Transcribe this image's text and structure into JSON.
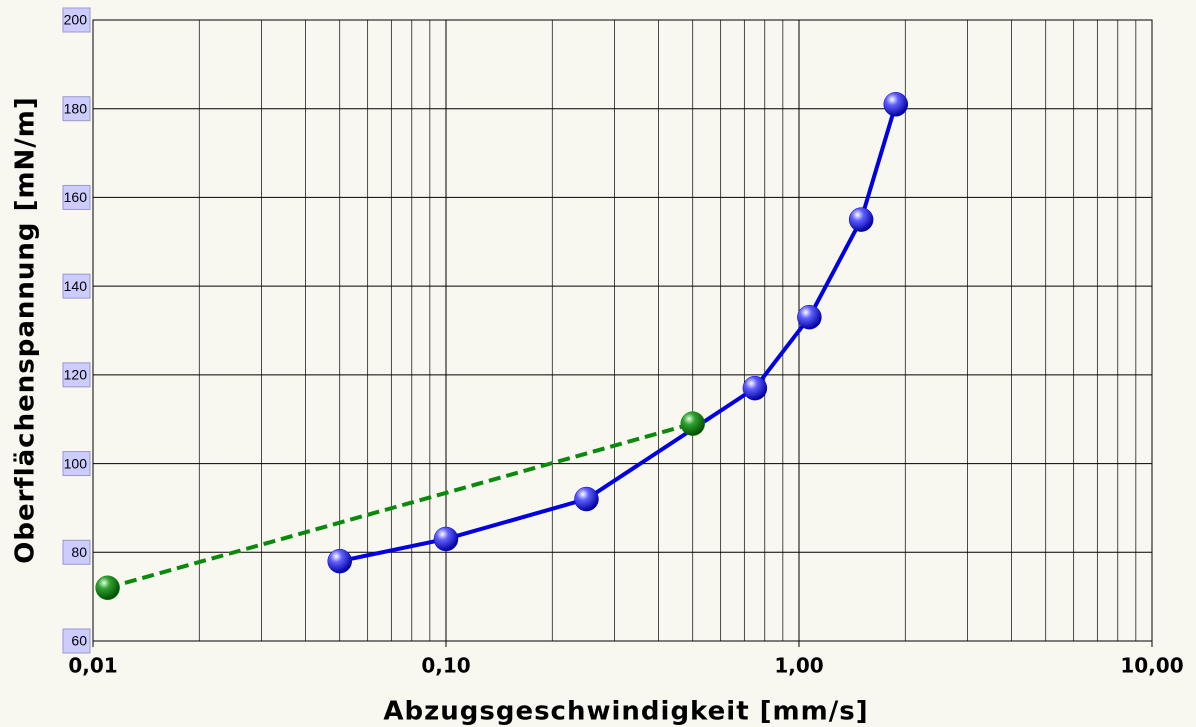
{
  "chart_data": {
    "type": "line",
    "xlabel": "Abzugsgeschwindigkeit [mm/s]",
    "ylabel": "Oberflächenspannung [mN/m]",
    "xscale": "log",
    "xlim": [
      0.01,
      10
    ],
    "xticks": [
      {
        "value": 0.01,
        "label": "0,01"
      },
      {
        "value": 0.1,
        "label": "0,10"
      },
      {
        "value": 1,
        "label": "1,00"
      },
      {
        "value": 10,
        "label": "10,00"
      }
    ],
    "ylim": [
      60,
      200
    ],
    "yticks": [
      60,
      80,
      100,
      120,
      140,
      160,
      180,
      200
    ],
    "grid": true,
    "minor_grid": true,
    "series": [
      {
        "color": "#0000e0",
        "dashed": false,
        "x": [
          0.05,
          0.1,
          0.25,
          0.75,
          1.07,
          1.5,
          1.88
        ],
        "values": [
          78,
          83,
          92,
          117,
          133,
          155,
          181
        ]
      },
      {
        "color": "#0a8a0a",
        "dashed": true,
        "x": [
          0.011,
          0.5
        ],
        "values": [
          72,
          109
        ]
      }
    ]
  }
}
